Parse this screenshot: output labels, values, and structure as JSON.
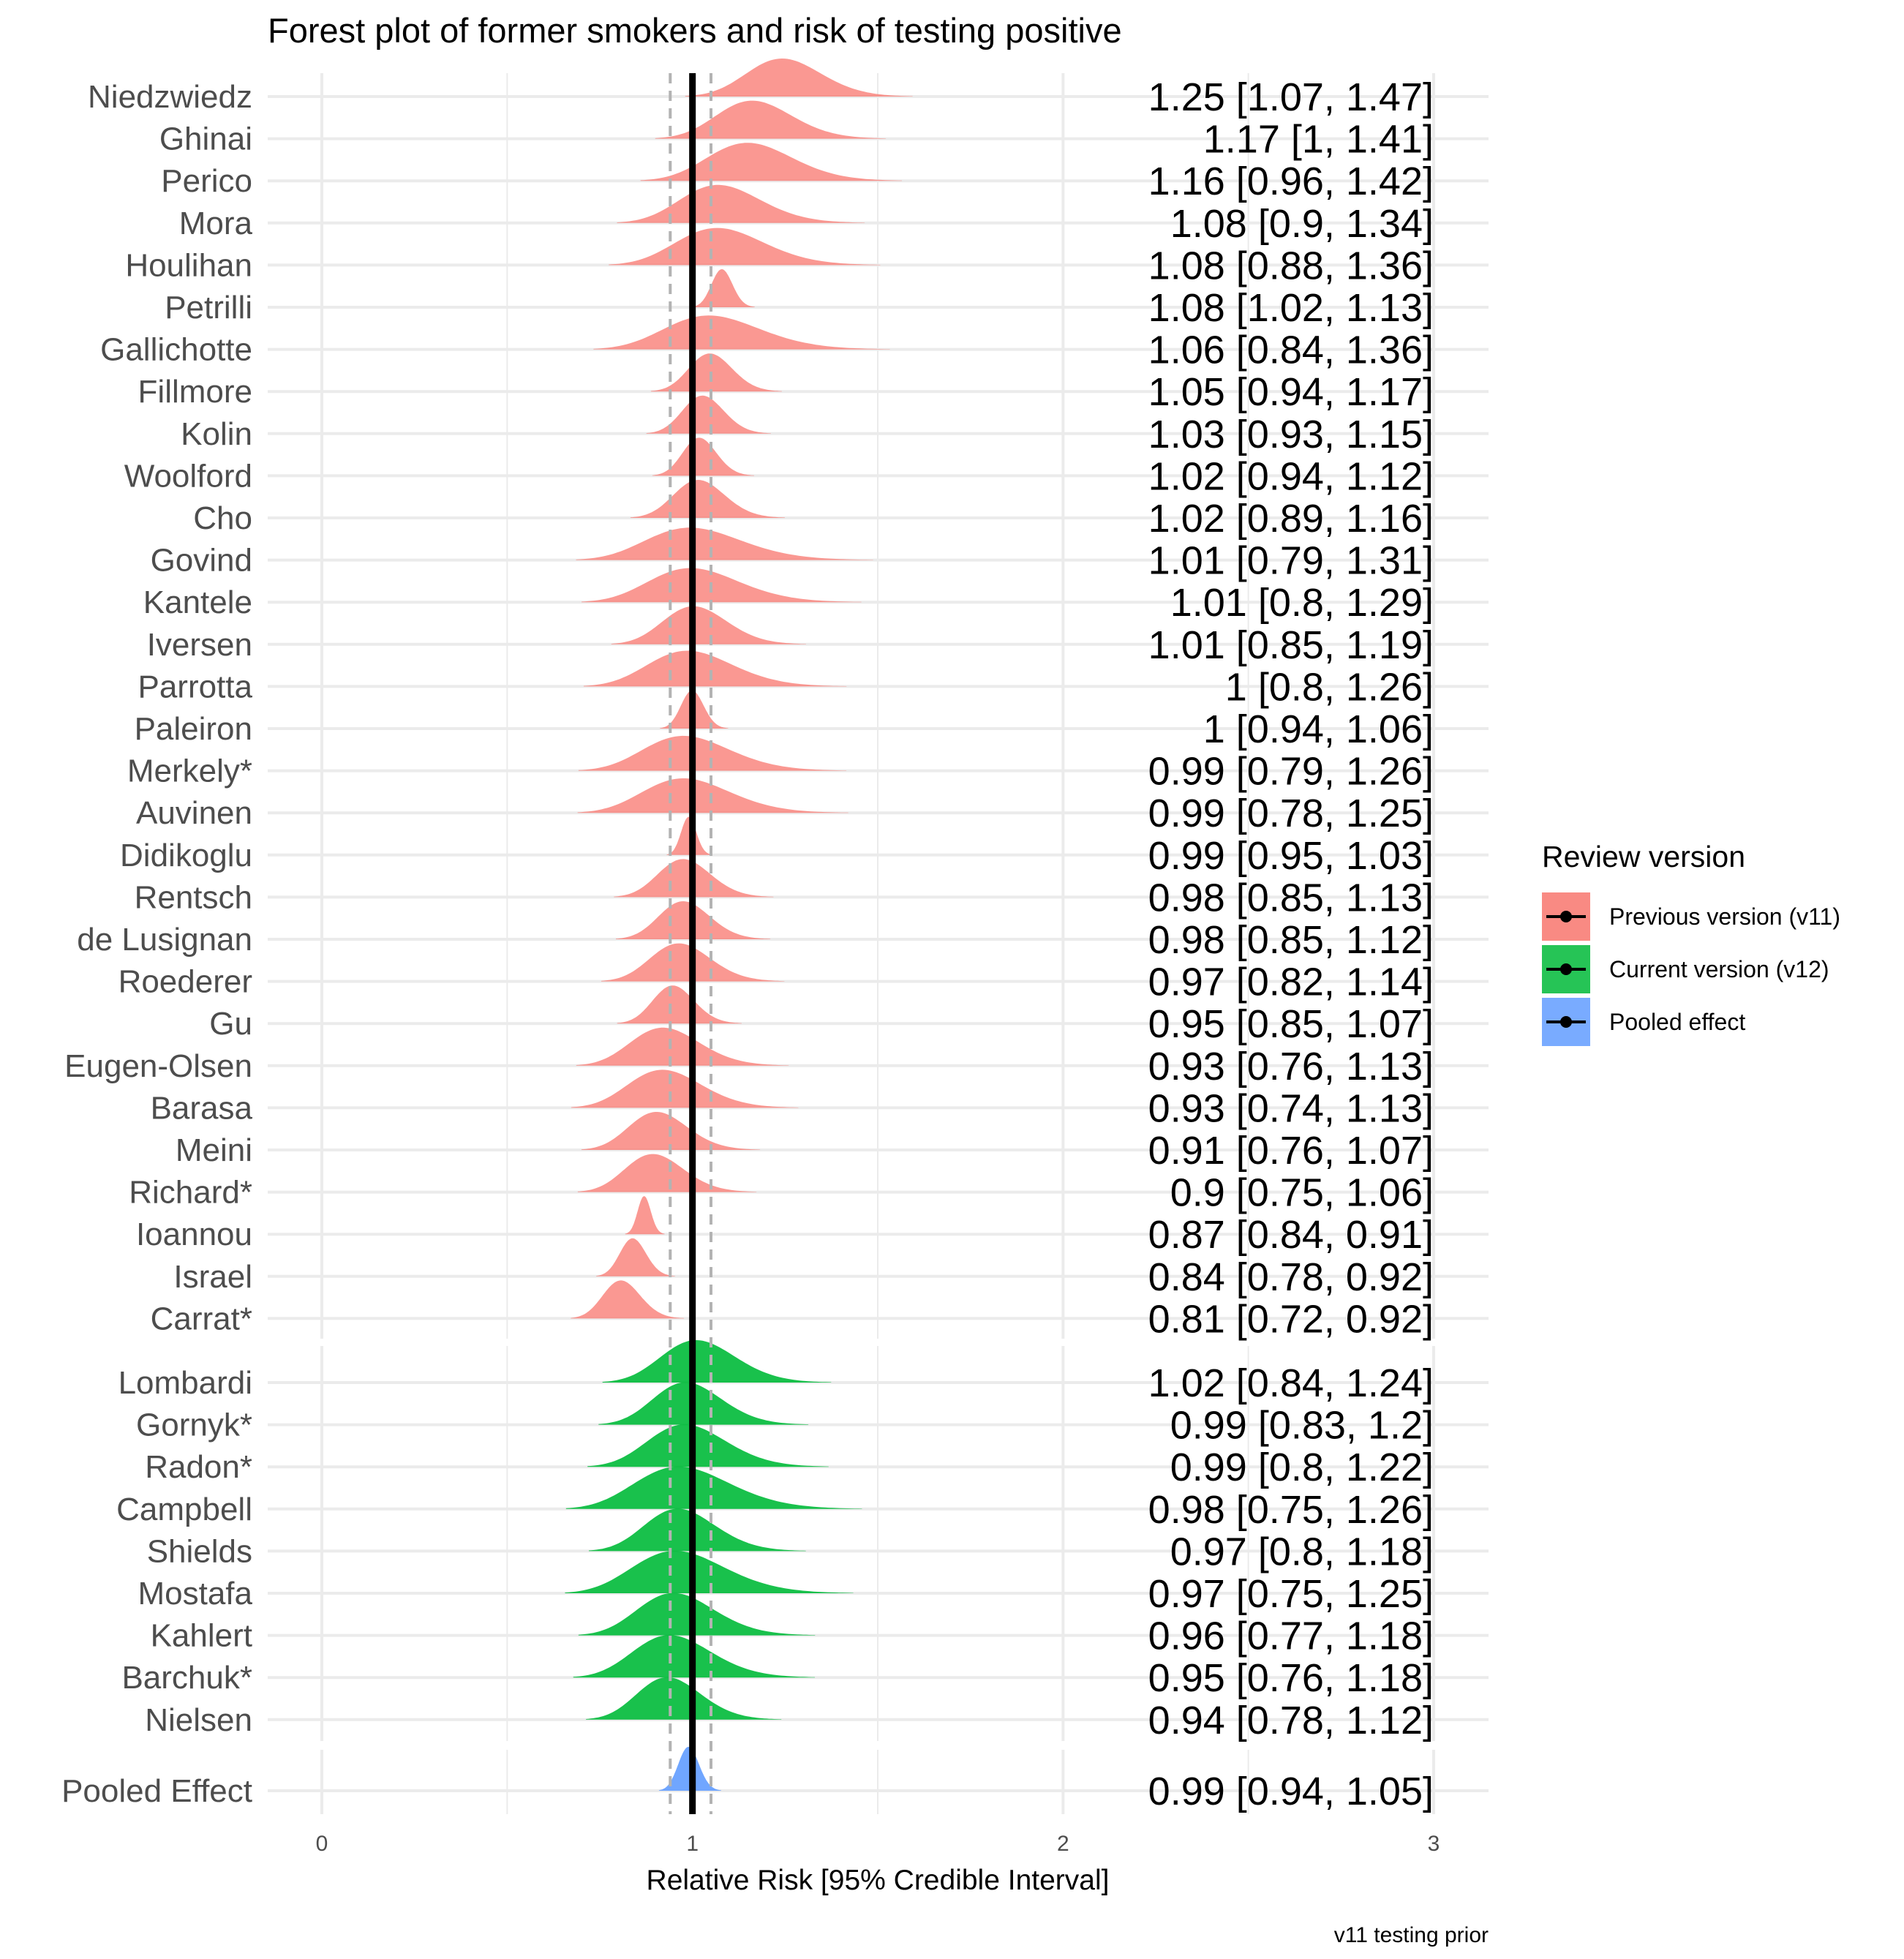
{
  "chart_data": {
    "type": "ridgeline-forest",
    "title": "Forest plot of former smokers and risk of testing positive",
    "xlabel": "Relative Risk [95% Credible Interval]",
    "caption": "v11 testing prior",
    "xlim": [
      0,
      3
    ],
    "x_ticks": [
      "0",
      "1",
      "2",
      "3"
    ],
    "reference_line": 1,
    "pooled_interval_lines": [
      0.94,
      1.05
    ],
    "grid": true,
    "legend": {
      "title": "Review version",
      "position": "right",
      "entries": [
        {
          "label": "Previous version (v11)",
          "color": "#F8766D"
        },
        {
          "label": "Current version (v12)",
          "color": "#00BA38"
        },
        {
          "label": "Pooled effect",
          "color": "#619CFF"
        }
      ]
    },
    "groups": [
      {
        "name": "Previous version (v11)",
        "color": "#F8766D",
        "studies": [
          {
            "study": "Niedzwiedz",
            "estimate": 1.25,
            "lower": 1.07,
            "upper": 1.47,
            "label": "1.25 [1.07, 1.47]"
          },
          {
            "study": "Ghinai",
            "estimate": 1.17,
            "lower": 1.0,
            "upper": 1.41,
            "label": "1.17 [1, 1.41]"
          },
          {
            "study": "Perico",
            "estimate": 1.16,
            "lower": 0.96,
            "upper": 1.42,
            "label": "1.16 [0.96, 1.42]"
          },
          {
            "study": "Mora",
            "estimate": 1.08,
            "lower": 0.9,
            "upper": 1.34,
            "label": "1.08 [0.9, 1.34]"
          },
          {
            "study": "Houlihan",
            "estimate": 1.08,
            "lower": 0.88,
            "upper": 1.36,
            "label": "1.08 [0.88, 1.36]"
          },
          {
            "study": "Petrilli",
            "estimate": 1.08,
            "lower": 1.02,
            "upper": 1.13,
            "label": "1.08 [1.02, 1.13]"
          },
          {
            "study": "Gallichotte",
            "estimate": 1.06,
            "lower": 0.84,
            "upper": 1.36,
            "label": "1.06 [0.84, 1.36]"
          },
          {
            "study": "Fillmore",
            "estimate": 1.05,
            "lower": 0.94,
            "upper": 1.17,
            "label": "1.05 [0.94, 1.17]"
          },
          {
            "study": "Kolin",
            "estimate": 1.03,
            "lower": 0.93,
            "upper": 1.15,
            "label": "1.03 [0.93, 1.15]"
          },
          {
            "study": "Woolford",
            "estimate": 1.02,
            "lower": 0.94,
            "upper": 1.12,
            "label": "1.02 [0.94, 1.12]"
          },
          {
            "study": "Cho",
            "estimate": 1.02,
            "lower": 0.89,
            "upper": 1.16,
            "label": "1.02 [0.89, 1.16]"
          },
          {
            "study": "Govind",
            "estimate": 1.01,
            "lower": 0.79,
            "upper": 1.31,
            "label": "1.01 [0.79, 1.31]"
          },
          {
            "study": "Kantele",
            "estimate": 1.01,
            "lower": 0.8,
            "upper": 1.29,
            "label": "1.01 [0.8, 1.29]"
          },
          {
            "study": "Iversen",
            "estimate": 1.01,
            "lower": 0.85,
            "upper": 1.19,
            "label": "1.01 [0.85, 1.19]"
          },
          {
            "study": "Parrotta",
            "estimate": 1.0,
            "lower": 0.8,
            "upper": 1.26,
            "label": "1 [0.8, 1.26]"
          },
          {
            "study": "Paleiron",
            "estimate": 1.0,
            "lower": 0.94,
            "upper": 1.06,
            "label": "1 [0.94, 1.06]"
          },
          {
            "study": "Merkely*",
            "estimate": 0.99,
            "lower": 0.79,
            "upper": 1.26,
            "label": "0.99 [0.79, 1.26]"
          },
          {
            "study": "Auvinen",
            "estimate": 0.99,
            "lower": 0.78,
            "upper": 1.25,
            "label": "0.99 [0.78, 1.25]"
          },
          {
            "study": "Didikoglu",
            "estimate": 0.99,
            "lower": 0.95,
            "upper": 1.03,
            "label": "0.99 [0.95, 1.03]"
          },
          {
            "study": "Rentsch",
            "estimate": 0.98,
            "lower": 0.85,
            "upper": 1.13,
            "label": "0.98 [0.85, 1.13]"
          },
          {
            "study": "de Lusignan",
            "estimate": 0.98,
            "lower": 0.85,
            "upper": 1.12,
            "label": "0.98 [0.85, 1.12]"
          },
          {
            "study": "Roederer",
            "estimate": 0.97,
            "lower": 0.82,
            "upper": 1.14,
            "label": "0.97 [0.82, 1.14]"
          },
          {
            "study": "Gu",
            "estimate": 0.95,
            "lower": 0.85,
            "upper": 1.07,
            "label": "0.95 [0.85, 1.07]"
          },
          {
            "study": "Eugen-Olsen",
            "estimate": 0.93,
            "lower": 0.76,
            "upper": 1.13,
            "label": "0.93 [0.76, 1.13]"
          },
          {
            "study": "Barasa",
            "estimate": 0.93,
            "lower": 0.74,
            "upper": 1.13,
            "label": "0.93 [0.74, 1.13]"
          },
          {
            "study": "Meini",
            "estimate": 0.91,
            "lower": 0.76,
            "upper": 1.07,
            "label": "0.91 [0.76, 1.07]"
          },
          {
            "study": "Richard*",
            "estimate": 0.9,
            "lower": 0.75,
            "upper": 1.06,
            "label": "0.9 [0.75, 1.06]"
          },
          {
            "study": "Ioannou",
            "estimate": 0.87,
            "lower": 0.84,
            "upper": 0.91,
            "label": "0.87 [0.84, 0.91]"
          },
          {
            "study": "Israel",
            "estimate": 0.84,
            "lower": 0.78,
            "upper": 0.92,
            "label": "0.84 [0.78, 0.92]"
          },
          {
            "study": "Carrat*",
            "estimate": 0.81,
            "lower": 0.72,
            "upper": 0.92,
            "label": "0.81 [0.72, 0.92]"
          }
        ]
      },
      {
        "name": "Current version (v12)",
        "color": "#00BA38",
        "studies": [
          {
            "study": "Lombardi",
            "estimate": 1.02,
            "lower": 0.84,
            "upper": 1.24,
            "label": "1.02 [0.84, 1.24]"
          },
          {
            "study": "Gornyk*",
            "estimate": 0.99,
            "lower": 0.83,
            "upper": 1.2,
            "label": "0.99 [0.83, 1.2]"
          },
          {
            "study": "Radon*",
            "estimate": 0.99,
            "lower": 0.8,
            "upper": 1.22,
            "label": "0.99 [0.8, 1.22]"
          },
          {
            "study": "Campbell",
            "estimate": 0.98,
            "lower": 0.75,
            "upper": 1.26,
            "label": "0.98 [0.75, 1.26]"
          },
          {
            "study": "Shields",
            "estimate": 0.97,
            "lower": 0.8,
            "upper": 1.18,
            "label": "0.97 [0.8, 1.18]"
          },
          {
            "study": "Mostafa",
            "estimate": 0.97,
            "lower": 0.75,
            "upper": 1.25,
            "label": "0.97 [0.75, 1.25]"
          },
          {
            "study": "Kahlert",
            "estimate": 0.96,
            "lower": 0.77,
            "upper": 1.18,
            "label": "0.96 [0.77, 1.18]"
          },
          {
            "study": "Barchuk*",
            "estimate": 0.95,
            "lower": 0.76,
            "upper": 1.18,
            "label": "0.95 [0.76, 1.18]"
          },
          {
            "study": "Nielsen",
            "estimate": 0.94,
            "lower": 0.78,
            "upper": 1.12,
            "label": "0.94 [0.78, 1.12]"
          }
        ]
      },
      {
        "name": "Pooled effect",
        "color": "#619CFF",
        "studies": [
          {
            "study": "Pooled Effect",
            "estimate": 0.99,
            "lower": 0.94,
            "upper": 1.05,
            "label": "0.99 [0.94, 1.05]"
          }
        ]
      }
    ]
  }
}
